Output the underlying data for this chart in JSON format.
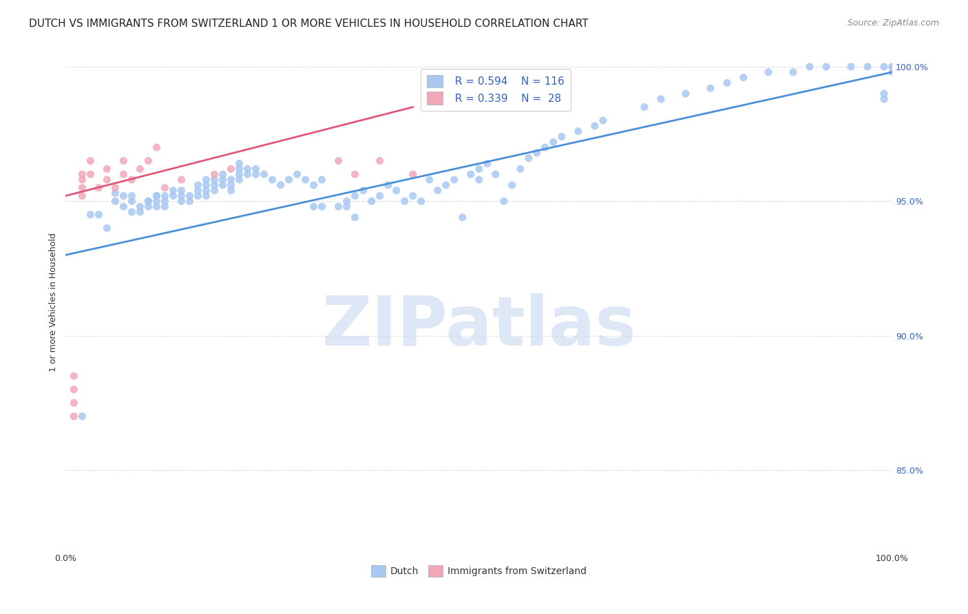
{
  "title": "DUTCH VS IMMIGRANTS FROM SWITZERLAND 1 OR MORE VEHICLES IN HOUSEHOLD CORRELATION CHART",
  "source": "Source: ZipAtlas.com",
  "xlabel": "",
  "ylabel": "1 or more Vehicles in Household",
  "xlim": [
    0.0,
    1.0
  ],
  "ylim": [
    0.82,
    1.005
  ],
  "x_ticks": [
    0.0,
    0.1,
    0.2,
    0.3,
    0.4,
    0.5,
    0.6,
    0.7,
    0.8,
    0.9,
    1.0
  ],
  "x_tick_labels": [
    "0.0%",
    "",
    "",
    "",
    "",
    "",
    "",
    "",
    "",
    "",
    "100.0%"
  ],
  "y_tick_labels": [
    "85.0%",
    "90.0%",
    "95.0%",
    "100.0%"
  ],
  "y_tick_positions": [
    0.85,
    0.9,
    0.95,
    1.0
  ],
  "legend_labels": [
    "Dutch",
    "Immigrants from Switzerland"
  ],
  "blue_R": "R = 0.594",
  "blue_N": "N = 116",
  "pink_R": "R = 0.339",
  "pink_N": "N =  28",
  "blue_color": "#a8c8f0",
  "pink_color": "#f0a8b8",
  "blue_line_color": "#4a90d9",
  "pink_line_color": "#e05878",
  "legend_text_color": "#3060c0",
  "background_color": "#ffffff",
  "watermark": "ZIPatlas",
  "blue_scatter_x": [
    0.02,
    0.03,
    0.04,
    0.05,
    0.06,
    0.06,
    0.07,
    0.07,
    0.08,
    0.08,
    0.08,
    0.09,
    0.09,
    0.1,
    0.1,
    0.1,
    0.11,
    0.11,
    0.11,
    0.11,
    0.12,
    0.12,
    0.12,
    0.13,
    0.13,
    0.14,
    0.14,
    0.14,
    0.15,
    0.15,
    0.16,
    0.16,
    0.16,
    0.17,
    0.17,
    0.17,
    0.17,
    0.18,
    0.18,
    0.18,
    0.19,
    0.19,
    0.19,
    0.2,
    0.2,
    0.2,
    0.21,
    0.21,
    0.21,
    0.21,
    0.22,
    0.22,
    0.23,
    0.23,
    0.24,
    0.25,
    0.26,
    0.27,
    0.28,
    0.29,
    0.3,
    0.3,
    0.31,
    0.31,
    0.33,
    0.34,
    0.34,
    0.35,
    0.35,
    0.36,
    0.37,
    0.38,
    0.39,
    0.4,
    0.41,
    0.42,
    0.43,
    0.44,
    0.45,
    0.46,
    0.47,
    0.48,
    0.49,
    0.5,
    0.5,
    0.51,
    0.52,
    0.53,
    0.54,
    0.55,
    0.56,
    0.57,
    0.58,
    0.59,
    0.6,
    0.62,
    0.64,
    0.65,
    0.7,
    0.72,
    0.75,
    0.78,
    0.8,
    0.82,
    0.85,
    0.88,
    0.9,
    0.92,
    0.95,
    0.97,
    0.99,
    0.99,
    0.99,
    1.0,
    1.0,
    1.0
  ],
  "blue_scatter_y": [
    0.87,
    0.945,
    0.945,
    0.94,
    0.95,
    0.953,
    0.948,
    0.952,
    0.946,
    0.95,
    0.952,
    0.946,
    0.948,
    0.95,
    0.948,
    0.95,
    0.952,
    0.95,
    0.948,
    0.952,
    0.948,
    0.952,
    0.95,
    0.952,
    0.954,
    0.95,
    0.952,
    0.954,
    0.95,
    0.952,
    0.952,
    0.954,
    0.956,
    0.952,
    0.954,
    0.956,
    0.958,
    0.954,
    0.956,
    0.958,
    0.956,
    0.958,
    0.96,
    0.954,
    0.956,
    0.958,
    0.958,
    0.96,
    0.962,
    0.964,
    0.96,
    0.962,
    0.96,
    0.962,
    0.96,
    0.958,
    0.956,
    0.958,
    0.96,
    0.958,
    0.956,
    0.948,
    0.958,
    0.948,
    0.948,
    0.948,
    0.95,
    0.952,
    0.944,
    0.954,
    0.95,
    0.952,
    0.956,
    0.954,
    0.95,
    0.952,
    0.95,
    0.958,
    0.954,
    0.956,
    0.958,
    0.944,
    0.96,
    0.958,
    0.962,
    0.964,
    0.96,
    0.95,
    0.956,
    0.962,
    0.966,
    0.968,
    0.97,
    0.972,
    0.974,
    0.976,
    0.978,
    0.98,
    0.985,
    0.988,
    0.99,
    0.992,
    0.994,
    0.996,
    0.998,
    0.998,
    1.0,
    1.0,
    1.0,
    1.0,
    0.988,
    0.99,
    1.0,
    0.998,
    1.0,
    1.0
  ],
  "pink_scatter_x": [
    0.01,
    0.01,
    0.01,
    0.01,
    0.02,
    0.02,
    0.02,
    0.02,
    0.03,
    0.03,
    0.04,
    0.05,
    0.05,
    0.06,
    0.07,
    0.07,
    0.08,
    0.09,
    0.1,
    0.11,
    0.12,
    0.14,
    0.18,
    0.2,
    0.33,
    0.35,
    0.38,
    0.42
  ],
  "pink_scatter_y": [
    0.87,
    0.875,
    0.88,
    0.885,
    0.96,
    0.958,
    0.955,
    0.952,
    0.965,
    0.96,
    0.955,
    0.962,
    0.958,
    0.955,
    0.96,
    0.965,
    0.958,
    0.962,
    0.965,
    0.97,
    0.955,
    0.958,
    0.96,
    0.962,
    0.965,
    0.96,
    0.965,
    0.96
  ],
  "blue_line_x": [
    0.0,
    1.0
  ],
  "blue_line_y": [
    0.93,
    0.998
  ],
  "pink_line_x": [
    0.0,
    0.42
  ],
  "pink_line_y": [
    0.952,
    0.985
  ],
  "grid_color": "#e0e0e0",
  "watermark_color": "#c8d8f0",
  "watermark_fontsize": 72,
  "title_fontsize": 11,
  "axis_label_fontsize": 9,
  "tick_fontsize": 9,
  "legend_fontsize": 11,
  "marker_size": 8
}
